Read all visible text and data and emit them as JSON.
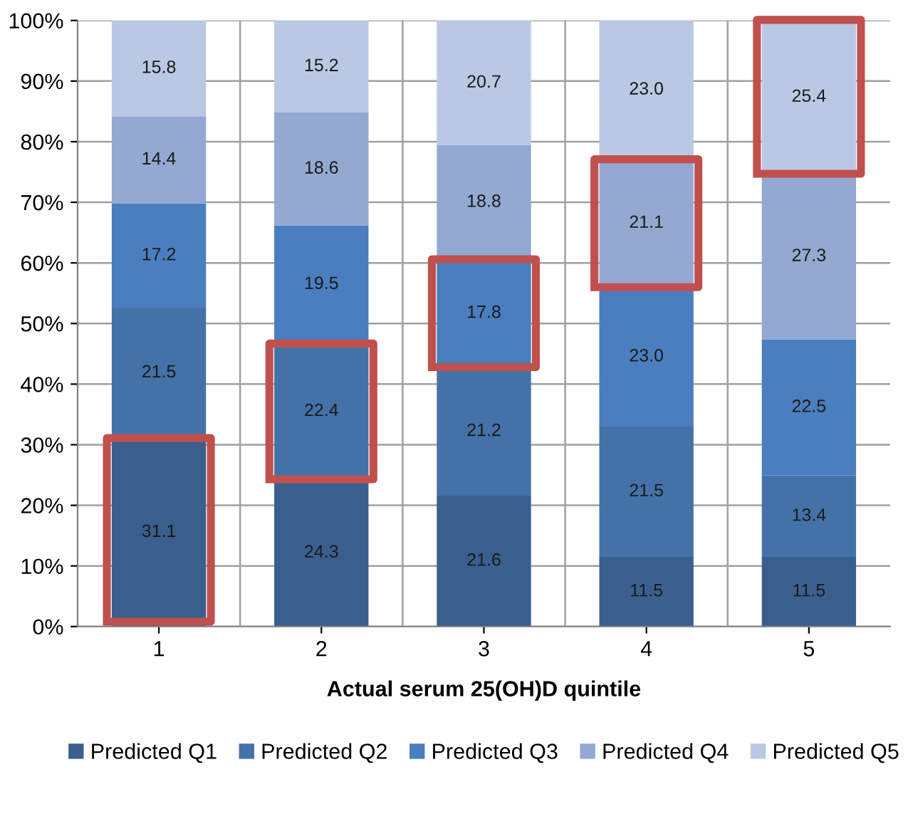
{
  "chart_data": {
    "type": "bar",
    "stacked": true,
    "xlabel": "Actual serum 25(OH)D quintile",
    "categories": [
      "1",
      "2",
      "3",
      "4",
      "5"
    ],
    "series": [
      {
        "name": "Predicted Q1",
        "color": "#3a5f8f",
        "values": [
          31.1,
          24.3,
          21.6,
          11.5,
          11.5
        ],
        "value_labels": [
          "31.1",
          "24.3",
          "21.6",
          "11.5",
          "11.5"
        ]
      },
      {
        "name": "Predicted Q2",
        "color": "#4472a8",
        "values": [
          21.5,
          22.4,
          21.2,
          21.5,
          13.4
        ],
        "value_labels": [
          "21.5",
          "22.4",
          "21.2",
          "21.5",
          "13.4"
        ]
      },
      {
        "name": "Predicted Q3",
        "color": "#4a7ebf",
        "values": [
          17.2,
          19.5,
          17.8,
          23.0,
          22.5
        ],
        "value_labels": [
          "17.2",
          "19.5",
          "17.8",
          "23.0",
          "22.5"
        ]
      },
      {
        "name": "Predicted Q4",
        "color": "#93a9d2",
        "values": [
          14.4,
          18.6,
          18.8,
          21.1,
          27.3
        ],
        "value_labels": [
          "14.4",
          "18.6",
          "18.8",
          "21.1",
          "27.3"
        ]
      },
      {
        "name": "Predicted Q5",
        "color": "#bac8e3",
        "values": [
          15.8,
          15.2,
          20.7,
          23.0,
          25.4
        ],
        "value_labels": [
          "15.8",
          "15.2",
          "20.7",
          "23.0",
          "25.4"
        ]
      }
    ],
    "ylim": [
      0,
      100
    ],
    "yticks": [
      {
        "value": 0,
        "label": "0%"
      },
      {
        "value": 10,
        "label": "10%"
      },
      {
        "value": 20,
        "label": "20%"
      },
      {
        "value": 30,
        "label": "30%"
      },
      {
        "value": 40,
        "label": "40%"
      },
      {
        "value": 50,
        "label": "50%"
      },
      {
        "value": 60,
        "label": "60%"
      },
      {
        "value": 70,
        "label": "70%"
      },
      {
        "value": 80,
        "label": "80%"
      },
      {
        "value": 90,
        "label": "90%"
      },
      {
        "value": 100,
        "label": "100%"
      }
    ],
    "grid": true,
    "legend": "bottom"
  }
}
